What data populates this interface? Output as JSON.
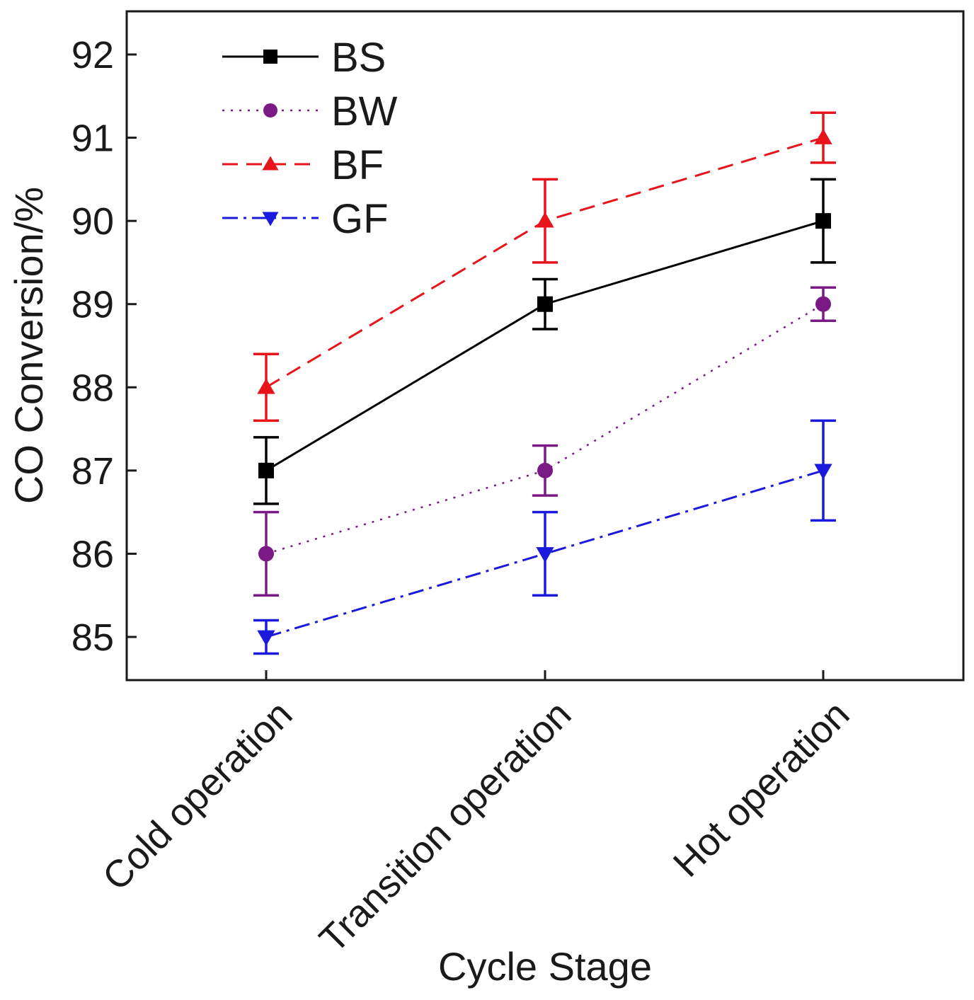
{
  "chart_data": {
    "type": "line",
    "title": "",
    "xlabel": "Cycle Stage",
    "ylabel": "CO Conversion/%",
    "categories": [
      "Cold operation",
      "Transition operation",
      "Hot operation"
    ],
    "ylim": [
      84.5,
      92.5
    ],
    "yticks": [
      85,
      86,
      87,
      88,
      89,
      90,
      91,
      92
    ],
    "grid": false,
    "legend_position": "top-left",
    "series": [
      {
        "name": "BS",
        "color": "#000000",
        "line_style": "solid",
        "marker": "square",
        "values": [
          87,
          89,
          90
        ],
        "errors": [
          0.4,
          0.3,
          0.5
        ]
      },
      {
        "name": "BW",
        "color": "#7b1a85",
        "line_style": "dotted",
        "marker": "circle",
        "values": [
          86,
          87,
          89
        ],
        "errors": [
          0.5,
          0.3,
          0.2
        ]
      },
      {
        "name": "BF",
        "color": "#e8141b",
        "line_style": "dashed",
        "marker": "triangle-up",
        "values": [
          88,
          90,
          91
        ],
        "errors": [
          0.4,
          0.5,
          0.3
        ]
      },
      {
        "name": "GF",
        "color": "#1a1adc",
        "line_style": "dash-dot",
        "marker": "triangle-down",
        "values": [
          85,
          86,
          87
        ],
        "errors": [
          0.2,
          0.5,
          0.6
        ]
      }
    ]
  }
}
